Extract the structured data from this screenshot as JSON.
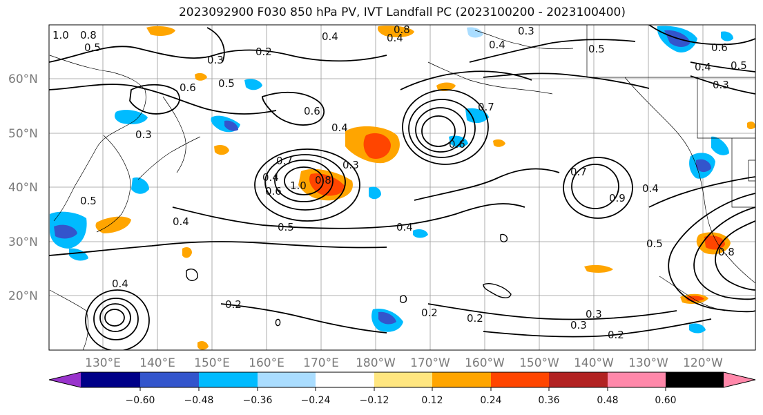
{
  "title": "2023092900 F030 850 hPa PV, IVT Landfall PC (2023100200 - 2023100400)",
  "lat_labels": [
    "60°N",
    "50°N",
    "40°N",
    "30°N",
    "20°N"
  ],
  "lon_labels": [
    "130°E",
    "140°E",
    "150°E",
    "160°E",
    "170°E",
    "180°W",
    "170°W",
    "160°W",
    "150°W",
    "140°W",
    "130°W",
    "120°W"
  ],
  "colorbar": {
    "tick_labels": [
      "−0.60",
      "−0.48",
      "−0.36",
      "−0.24",
      "−0.12",
      "0.12",
      "0.24",
      "0.36",
      "0.48",
      "0.60"
    ],
    "colors": [
      "#9933cc",
      "#000088",
      "#3355cc",
      "#00bbff",
      "#aaddff",
      "#ffffff",
      "#ffe680",
      "#ffa500",
      "#ff4500",
      "#b22222",
      "#ff88aa"
    ]
  },
  "contour_labels": [
    "1.0",
    "0.8",
    "0.5",
    "0.3",
    "0.2",
    "0.4",
    "0.8",
    "0.4",
    "0.3",
    "0.4",
    "0.5",
    "0.6",
    "0.4",
    "0.5",
    "0.3",
    "0.6",
    "0.5",
    "0.3",
    "0.6",
    "0.4",
    "0.7",
    "0.4",
    "0.3",
    "0.7",
    "0.6",
    "1.0",
    "0.8",
    "0.6",
    "0.5",
    "0.4",
    "0.7",
    "0.4",
    "0.9",
    "0.5",
    "0.4",
    "0.2",
    "0.2",
    "0.3",
    "0.3",
    "0.2",
    "0.2",
    "0.4",
    "0.5",
    "0.8"
  ]
}
